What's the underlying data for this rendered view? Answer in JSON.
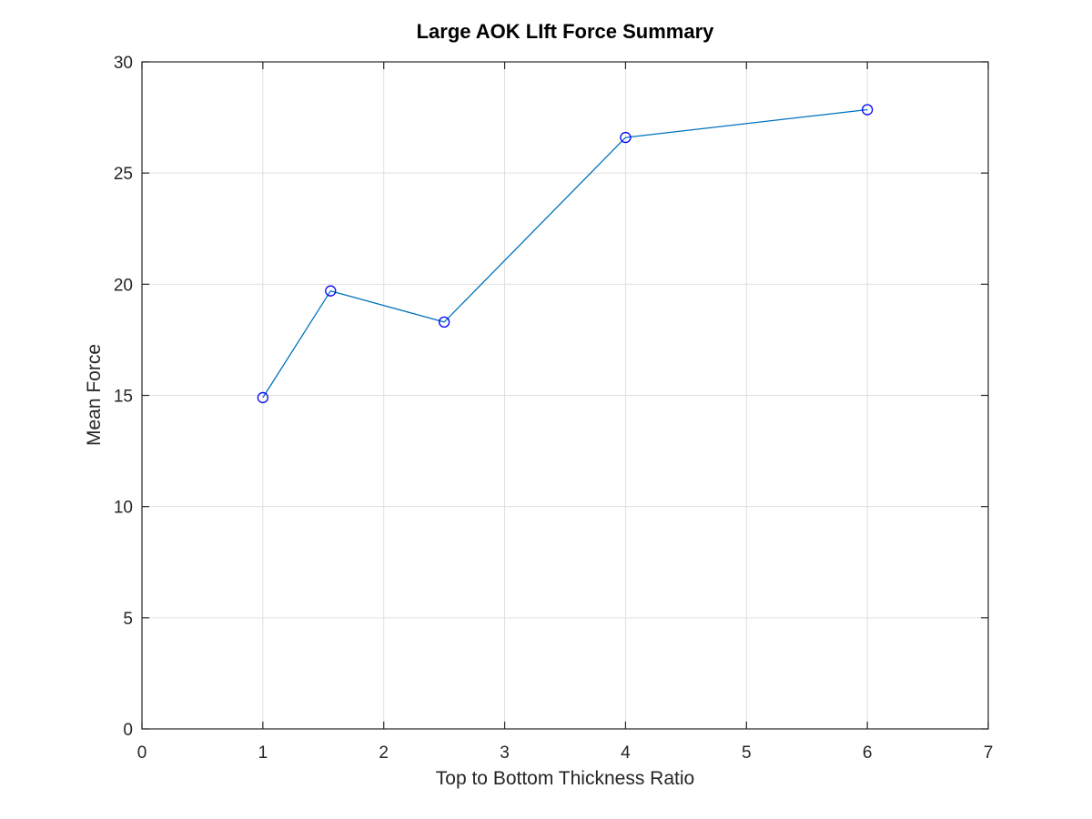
{
  "chart_data": {
    "type": "line",
    "title": "Large AOK LIft Force Summary",
    "xlabel": "Top to Bottom Thickness Ratio",
    "ylabel": "Mean Force",
    "xlim": [
      0,
      7
    ],
    "ylim": [
      0,
      30
    ],
    "xticks": [
      0,
      1,
      2,
      3,
      4,
      5,
      6,
      7
    ],
    "yticks": [
      0,
      5,
      10,
      15,
      20,
      25,
      30
    ],
    "grid": true,
    "series": [
      {
        "x": [
          1,
          1.56,
          2.5,
          4,
          6
        ],
        "y": [
          14.9,
          19.7,
          18.3,
          26.6,
          27.85
        ],
        "line_color": "#0072bd",
        "marker": "circle",
        "marker_color": "#0000ff"
      }
    ]
  }
}
